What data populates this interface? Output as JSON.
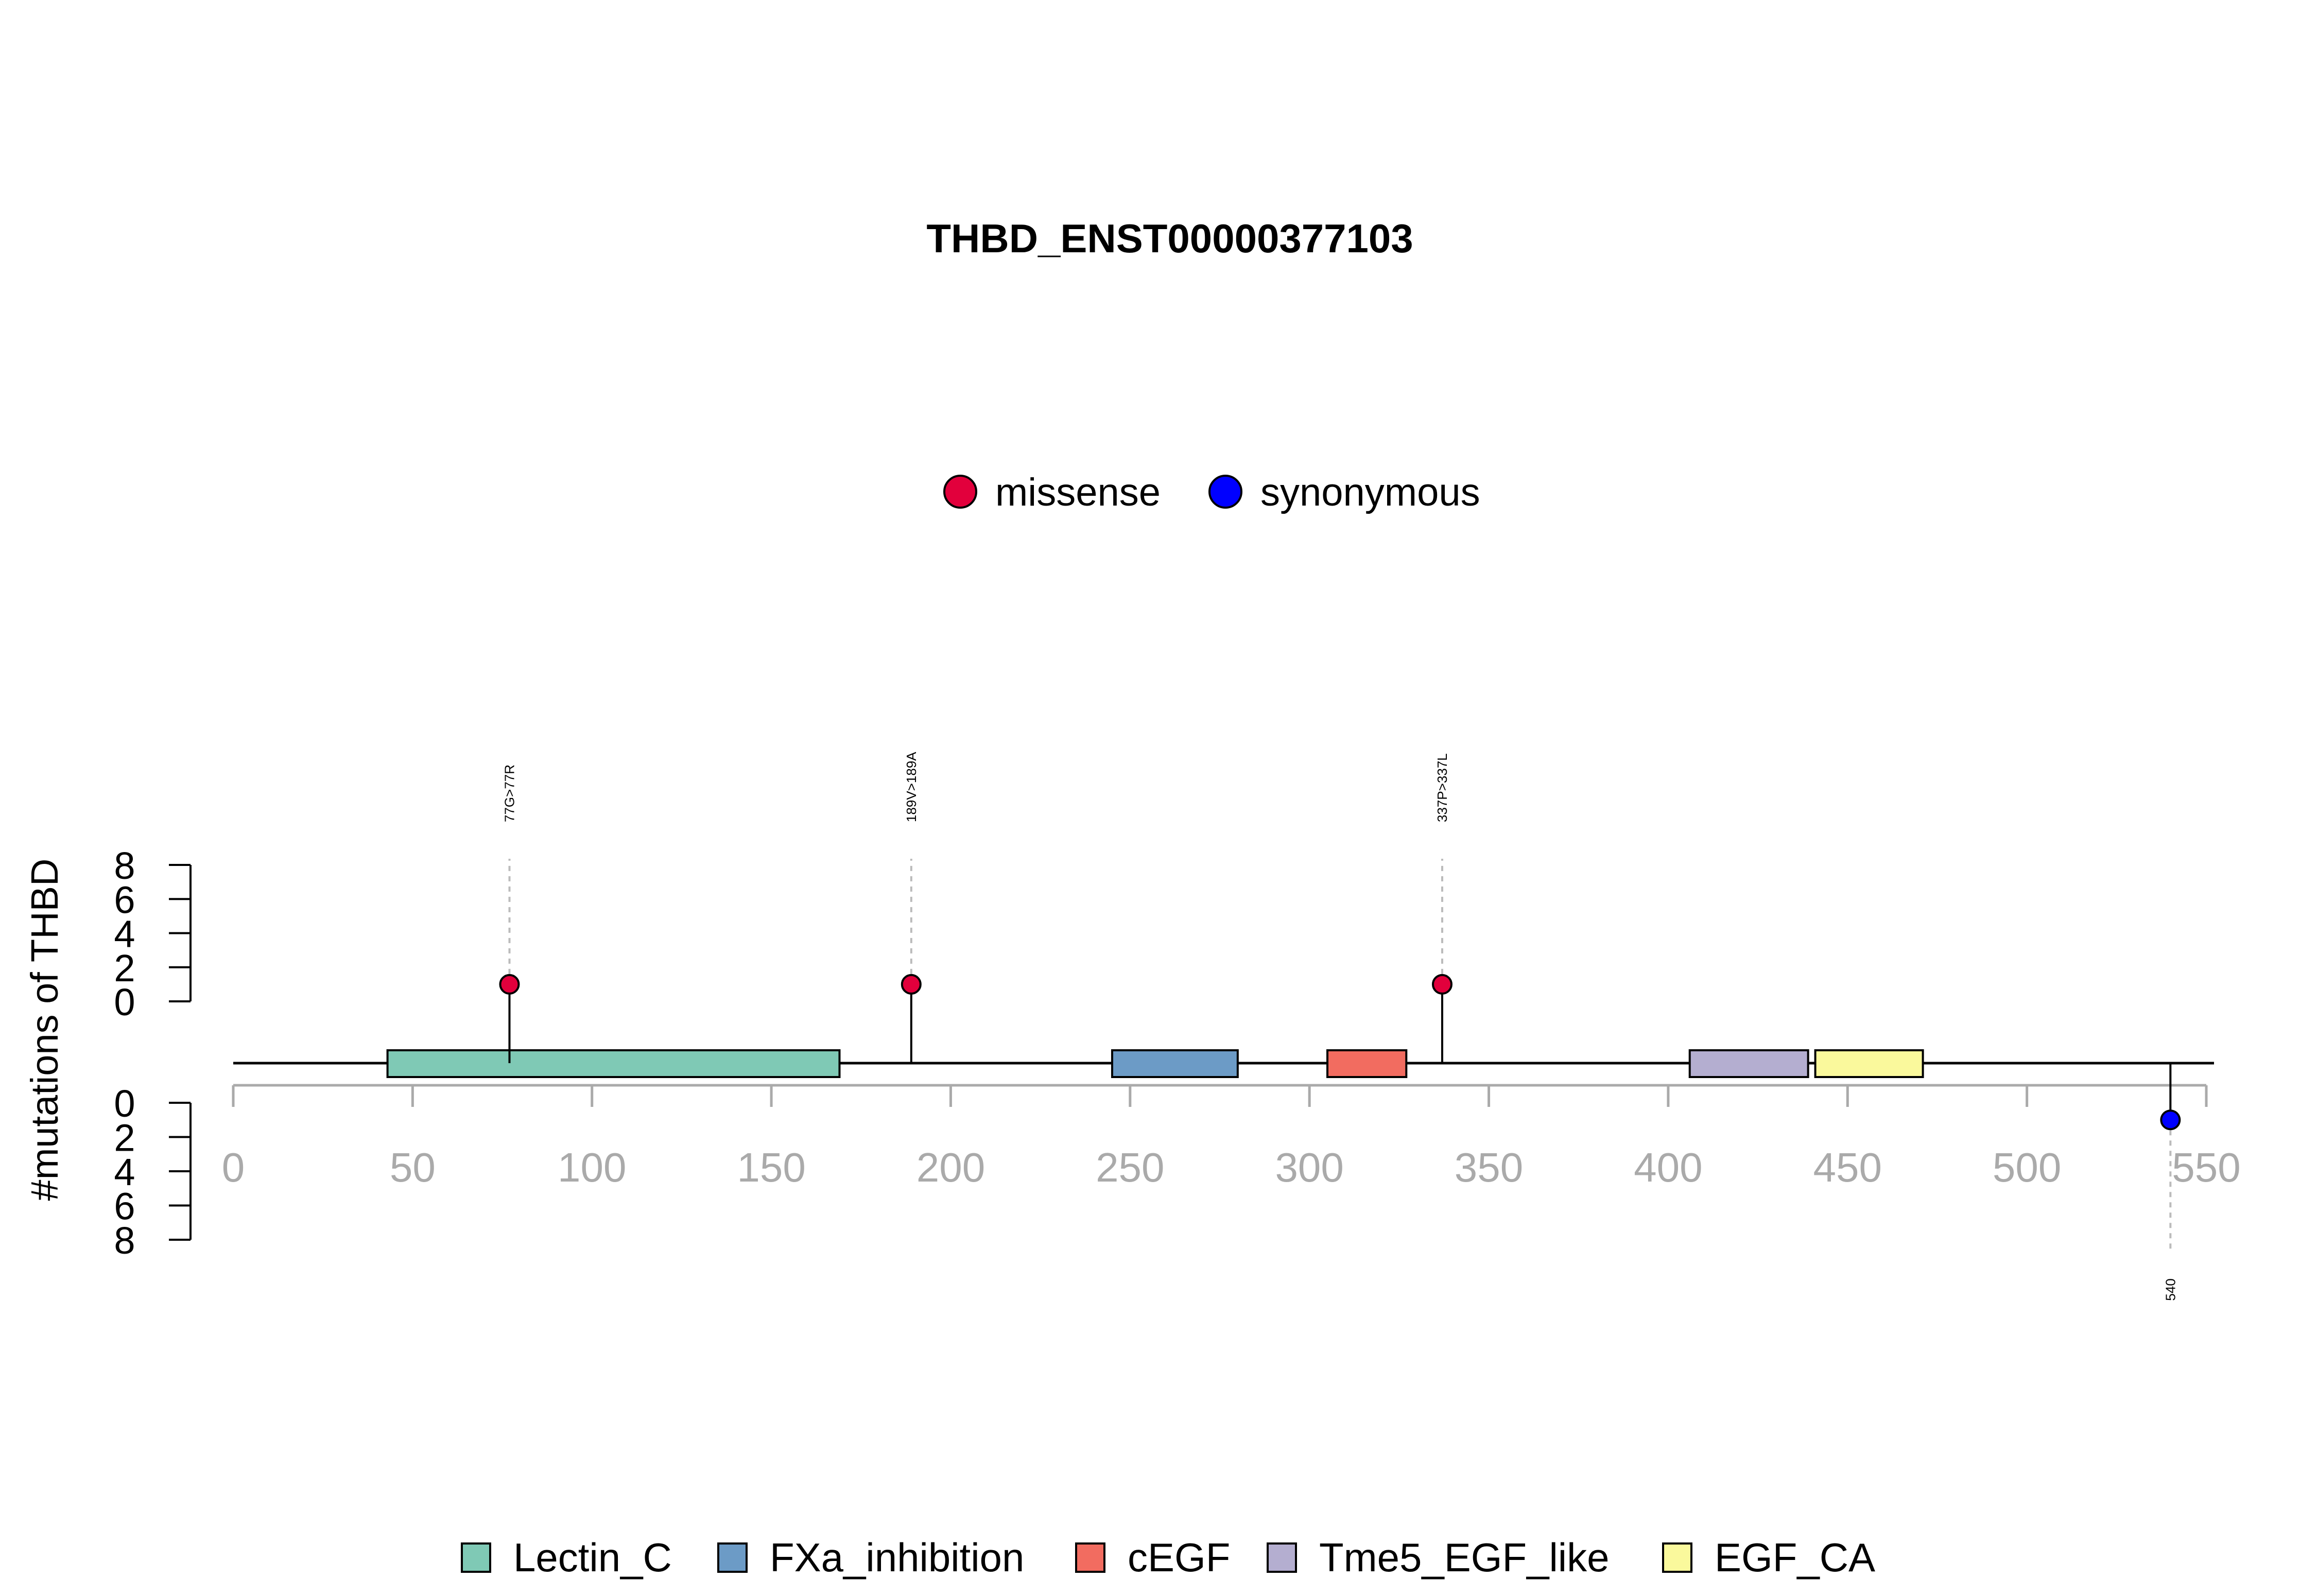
{
  "chart_data": {
    "type": "lollipop",
    "title": "THBD_ENST00000377103",
    "ylabel": "#mutations of THBD",
    "xlim": [
      0,
      550
    ],
    "x_ticks": [
      "0",
      "50",
      "100",
      "150",
      "200",
      "250",
      "300",
      "350",
      "400",
      "450",
      "500",
      "550"
    ],
    "ylim": [
      0,
      8
    ],
    "y_ticks": [
      "0",
      "2",
      "4",
      "6",
      "8"
    ],
    "mutation_legend": [
      {
        "name": "missense",
        "color": "#E2003C"
      },
      {
        "name": "synonymous",
        "color": "#0000FF"
      }
    ],
    "mutations": [
      {
        "label": "77G>77R",
        "x": 77,
        "count": 1,
        "type": "missense",
        "strand": "top"
      },
      {
        "label": "189V>189A",
        "x": 189,
        "count": 1,
        "type": "missense",
        "strand": "top"
      },
      {
        "label": "337P>337L",
        "x": 337,
        "count": 1,
        "type": "missense",
        "strand": "top"
      },
      {
        "label": "540",
        "x": 540,
        "count": 1,
        "type": "synonymous",
        "strand": "bottom"
      }
    ],
    "domains": [
      {
        "name": "Lectin_C",
        "start": 43,
        "end": 169,
        "color": "#7FC9B5"
      },
      {
        "name": "FXa_inhibition",
        "start": 245,
        "end": 280,
        "color": "#6C9BC6"
      },
      {
        "name": "cEGF",
        "start": 305,
        "end": 327,
        "color": "#F26C60"
      },
      {
        "name": "Tme5_EGF_like",
        "start": 406,
        "end": 439,
        "color": "#B4AED0"
      },
      {
        "name": "EGF_CA",
        "start": 441,
        "end": 471,
        "color": "#FAF99C"
      }
    ],
    "protein_length": 550
  }
}
